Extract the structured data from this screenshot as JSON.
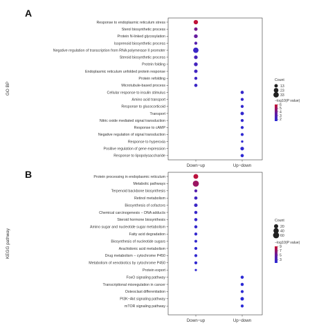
{
  "chart_data": [
    {
      "type": "scatter",
      "panel_letter": "A",
      "ylabel": "GO BP",
      "x_categories": [
        "Down−up",
        "Up−down"
      ],
      "categories": [
        "Response to endoplasmic reticulum stress",
        "Sterol biosynthetic process",
        "Protein N-linked glycosylation",
        "Isoprenoid biosynthetic process",
        "Negative regulation of transcription from RNA polymerase II promoter",
        "Steroid biosynthetic process",
        "Protein folding",
        "Endoplasmic reticulum unfolded protein response",
        "Protein refolding",
        "Microtubule-based process",
        "Cellular response to insulin stimulus",
        "Amino acid transport",
        "Response to glucocorticoid",
        "Transport",
        "Nitric oxide mediated signal transduction",
        "Response to cAMP",
        "Negative regulation of signal transduction",
        "Response to hyperoxia",
        "Positive regulation of gene expression",
        "Response to lipopolysaccharide"
      ],
      "points": [
        {
          "category": "Response to endoplasmic reticulum stress",
          "x": "Down−up",
          "count": 20,
          "neg_log10_p": 5.8
        },
        {
          "category": "Sterol biosynthetic process",
          "x": "Down−up",
          "count": 13,
          "neg_log10_p": 4.0
        },
        {
          "category": "Protein N-linked glycosylation",
          "x": "Down−up",
          "count": 15,
          "neg_log10_p": 3.6
        },
        {
          "category": "Isoprenoid biosynthetic process",
          "x": "Down−up",
          "count": 11,
          "neg_log10_p": 3.0
        },
        {
          "category": "Negative regulation of transcription from RNA polymerase II promoter",
          "x": "Down−up",
          "count": 33,
          "neg_log10_p": 2.1
        },
        {
          "category": "Steroid biosynthetic process",
          "x": "Down−up",
          "count": 14,
          "neg_log10_p": 2.6
        },
        {
          "category": "Protein folding",
          "x": "Down−up",
          "count": 15,
          "neg_log10_p": 2.4
        },
        {
          "category": "Endoplasmic reticulum unfolded protein response",
          "x": "Down−up",
          "count": 13,
          "neg_log10_p": 2.3
        },
        {
          "category": "Protein refolding",
          "x": "Down−up",
          "count": 11,
          "neg_log10_p": 2.2
        },
        {
          "category": "Microtubule-based process",
          "x": "Down−up",
          "count": 12,
          "neg_log10_p": 2.1
        },
        {
          "category": "Cellular response to insulin stimulus",
          "x": "Up−down",
          "count": 12,
          "neg_log10_p": 1.9
        },
        {
          "category": "Amino acid transport",
          "x": "Up−down",
          "count": 11,
          "neg_log10_p": 1.9
        },
        {
          "category": "Response to glucocorticoid",
          "x": "Up−down",
          "count": 11,
          "neg_log10_p": 1.8
        },
        {
          "category": "Transport",
          "x": "Up−down",
          "count": 13,
          "neg_log10_p": 1.8
        },
        {
          "category": "Nitric oxide mediated signal transduction",
          "x": "Up−down",
          "count": 11,
          "neg_log10_p": 1.8
        },
        {
          "category": "Response to cAMP",
          "x": "Up−down",
          "count": 11,
          "neg_log10_p": 1.7
        },
        {
          "category": "Negative regulation of signal transduction",
          "x": "Up−down",
          "count": 11,
          "neg_log10_p": 1.7
        },
        {
          "category": "Response to hyperoxia",
          "x": "Up−down",
          "count": 10,
          "neg_log10_p": 1.7
        },
        {
          "category": "Positive regulation of gene expression",
          "x": "Up−down",
          "count": 14,
          "neg_log10_p": 1.7
        },
        {
          "category": "Response to lipopolysaccharide",
          "x": "Up−down",
          "count": 12,
          "neg_log10_p": 1.6
        }
      ],
      "legend": {
        "size_title": "Count",
        "size_breaks": [
          13,
          23,
          33
        ],
        "color_title": "−log10(P value)",
        "color_breaks": [
          6,
          5,
          4,
          3,
          2
        ],
        "color_range": [
          1.5,
          6
        ],
        "colors": {
          "low": "#2a2ad6",
          "mid": "#6a1a9a",
          "high": "#c8102e"
        }
      }
    },
    {
      "type": "scatter",
      "panel_letter": "B",
      "ylabel": "KEGG pathway",
      "x_categories": [
        "Down−up",
        "Up−down"
      ],
      "categories": [
        "Protein processing in endoplasmic reticulum",
        "Metabolic pathways",
        "Terpenoid backbone biosynthesis",
        "Retinol metabolism",
        "Biosynthesis of cofactors",
        "Chemical carcinogenesis − DNA adducts",
        "Steroid hormone biosynthesis",
        "Amino sugar and nucleotide sugar metabolism",
        "Fatty acid degradation",
        "Biosynthesis of nucleotide sugars",
        "Arachidonic acid metabolism",
        "Drug metabolism − cytochrome P450",
        "Metabolism of xenobiotics by cytochrome P450",
        "Protein export",
        "FoxO signaling pathway",
        "Transcriptional misregulation in cancer",
        "Osteoclast differentiation",
        "PI3K−Akt signaling pathway",
        "mTOR signaling pathway"
      ],
      "points": [
        {
          "category": "Protein processing in endoplasmic reticulum",
          "x": "Down−up",
          "count": 30,
          "neg_log10_p": 8.5
        },
        {
          "category": "Metabolic pathways",
          "x": "Down−up",
          "count": 60,
          "neg_log10_p": 7.2
        },
        {
          "category": "Terpenoid backbone biosynthesis",
          "x": "Down−up",
          "count": 8,
          "neg_log10_p": 4.0
        },
        {
          "category": "Retinol metabolism",
          "x": "Down−up",
          "count": 10,
          "neg_log10_p": 2.8
        },
        {
          "category": "Biosynthesis of cofactors",
          "x": "Down−up",
          "count": 12,
          "neg_log10_p": 2.5
        },
        {
          "category": "Chemical carcinogenesis − DNA adducts",
          "x": "Down−up",
          "count": 9,
          "neg_log10_p": 2.3
        },
        {
          "category": "Steroid hormone biosynthesis",
          "x": "Down−up",
          "count": 9,
          "neg_log10_p": 2.2
        },
        {
          "category": "Amino sugar and nucleotide sugar metabolism",
          "x": "Down−up",
          "count": 9,
          "neg_log10_p": 2.1
        },
        {
          "category": "Fatty acid degradation",
          "x": "Down−up",
          "count": 8,
          "neg_log10_p": 2.0
        },
        {
          "category": "Biosynthesis of nucleotide sugars",
          "x": "Down−up",
          "count": 7,
          "neg_log10_p": 2.0
        },
        {
          "category": "Arachidonic acid metabolism",
          "x": "Down−up",
          "count": 8,
          "neg_log10_p": 1.9
        },
        {
          "category": "Drug metabolism − cytochrome P450",
          "x": "Down−up",
          "count": 8,
          "neg_log10_p": 1.9
        },
        {
          "category": "Metabolism of xenobiotics by cytochrome P450",
          "x": "Down−up",
          "count": 8,
          "neg_log10_p": 1.9
        },
        {
          "category": "Protein export",
          "x": "Down−up",
          "count": 6,
          "neg_log10_p": 1.8
        },
        {
          "category": "FoxO signaling pathway",
          "x": "Up−down",
          "count": 9,
          "neg_log10_p": 1.6
        },
        {
          "category": "Transcriptional misregulation in cancer",
          "x": "Up−down",
          "count": 9,
          "neg_log10_p": 1.6
        },
        {
          "category": "Osteoclast differentiation",
          "x": "Up−down",
          "count": 8,
          "neg_log10_p": 1.6
        },
        {
          "category": "PI3K−Akt signaling pathway",
          "x": "Up−down",
          "count": 12,
          "neg_log10_p": 1.5
        },
        {
          "category": "mTOR signaling pathway",
          "x": "Up−down",
          "count": 8,
          "neg_log10_p": 1.5
        }
      ],
      "legend": {
        "size_title": "Count",
        "size_breaks": [
          20,
          40,
          60
        ],
        "color_title": "−log10(P value)",
        "color_breaks": [
          9,
          7,
          5,
          3
        ],
        "color_range": [
          1.5,
          9
        ],
        "colors": {
          "low": "#2a2ad6",
          "mid": "#6a1a9a",
          "high": "#c8102e"
        }
      }
    }
  ]
}
